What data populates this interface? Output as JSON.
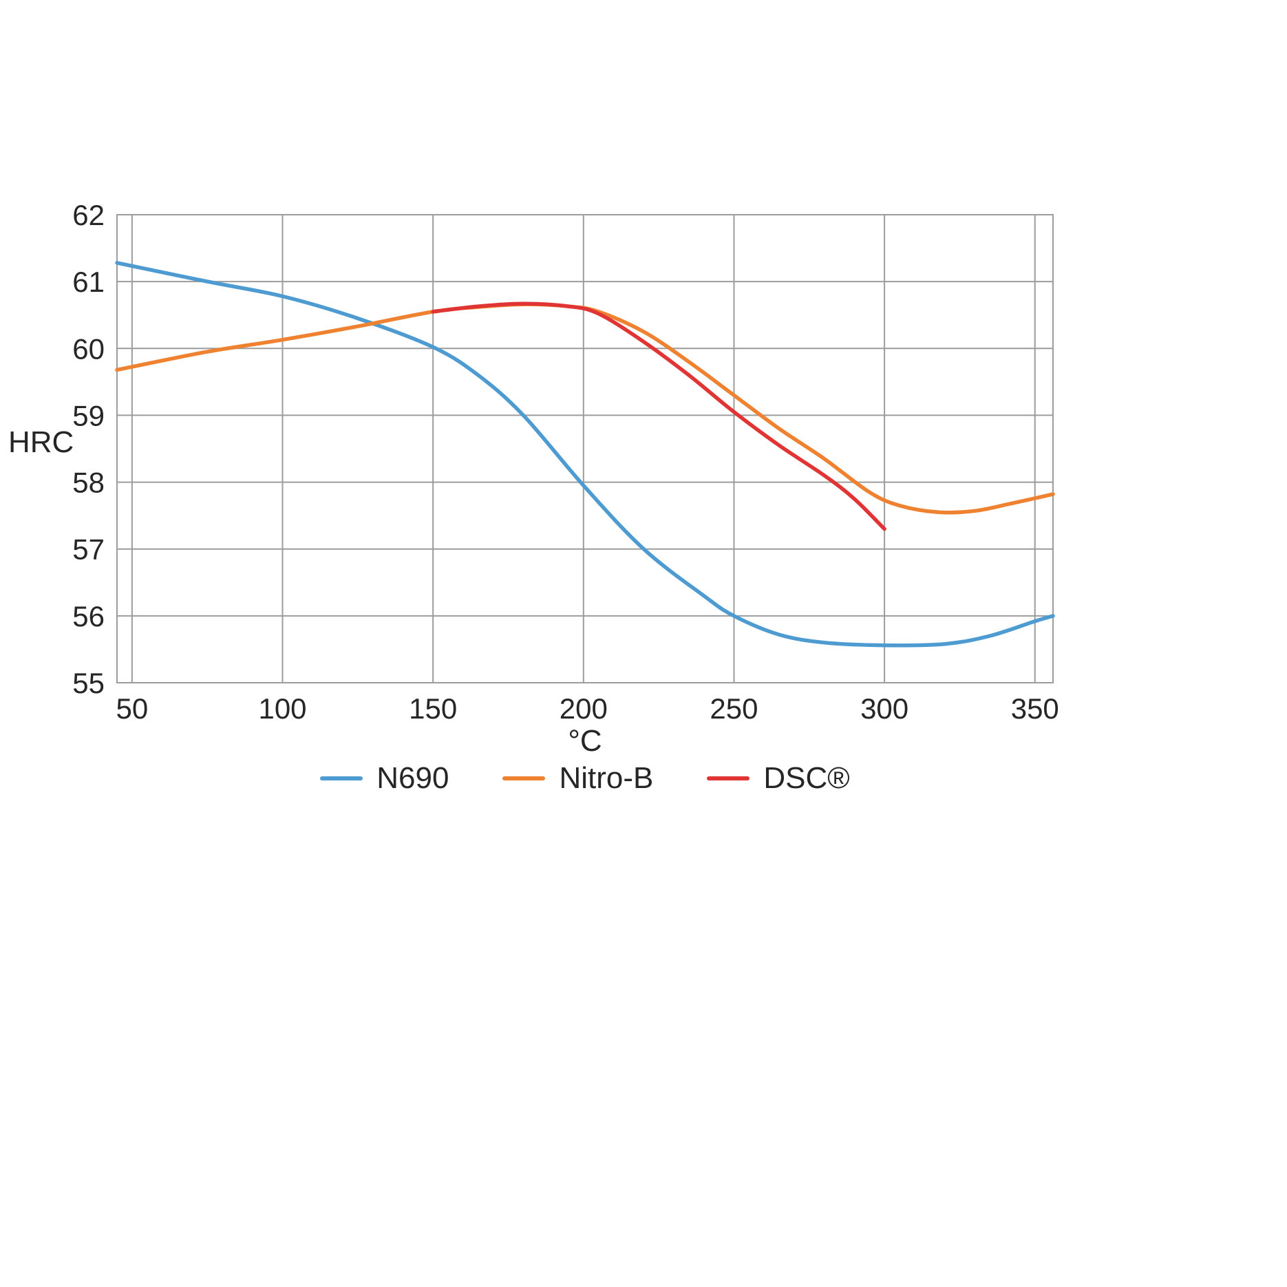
{
  "chart_data": {
    "type": "line",
    "title": "",
    "xlabel": "°C",
    "ylabel": "HRC",
    "xlim": [
      45,
      356
    ],
    "ylim": [
      55,
      62
    ],
    "x_ticks": [
      50,
      100,
      150,
      200,
      250,
      300,
      350
    ],
    "y_ticks": [
      55,
      56,
      57,
      58,
      59,
      60,
      61,
      62
    ],
    "grid": true,
    "grid_color": "#9c9c9c",
    "frame_color": "#9c9c9c",
    "text_color": "#262626",
    "legend_position": "bottom",
    "series": [
      {
        "name": "N690",
        "color": "#4d9bd1",
        "points": [
          [
            45,
            61.28
          ],
          [
            75,
            61.0
          ],
          [
            100,
            60.78
          ],
          [
            125,
            60.45
          ],
          [
            150,
            60.02
          ],
          [
            165,
            59.6
          ],
          [
            180,
            59.0
          ],
          [
            200,
            57.95
          ],
          [
            220,
            57.0
          ],
          [
            240,
            56.3
          ],
          [
            250,
            56.0
          ],
          [
            265,
            55.72
          ],
          [
            280,
            55.6
          ],
          [
            300,
            55.56
          ],
          [
            320,
            55.58
          ],
          [
            335,
            55.7
          ],
          [
            350,
            55.92
          ],
          [
            356,
            56.0
          ]
        ]
      },
      {
        "name": "Nitro-B",
        "color": "#ee8230",
        "points": [
          [
            45,
            59.68
          ],
          [
            75,
            59.95
          ],
          [
            100,
            60.13
          ],
          [
            125,
            60.33
          ],
          [
            150,
            60.55
          ],
          [
            165,
            60.62
          ],
          [
            180,
            60.66
          ],
          [
            195,
            60.63
          ],
          [
            205,
            60.55
          ],
          [
            220,
            60.25
          ],
          [
            235,
            59.8
          ],
          [
            250,
            59.3
          ],
          [
            265,
            58.8
          ],
          [
            280,
            58.35
          ],
          [
            295,
            57.85
          ],
          [
            305,
            57.65
          ],
          [
            318,
            57.55
          ],
          [
            330,
            57.57
          ],
          [
            342,
            57.68
          ],
          [
            356,
            57.82
          ]
        ]
      },
      {
        "name": "DSC®",
        "color": "#e03534",
        "points": [
          [
            150,
            60.55
          ],
          [
            165,
            60.63
          ],
          [
            180,
            60.67
          ],
          [
            195,
            60.63
          ],
          [
            205,
            60.52
          ],
          [
            220,
            60.1
          ],
          [
            235,
            59.6
          ],
          [
            250,
            59.05
          ],
          [
            265,
            58.55
          ],
          [
            280,
            58.1
          ],
          [
            290,
            57.75
          ],
          [
            300,
            57.3
          ]
        ]
      }
    ]
  }
}
